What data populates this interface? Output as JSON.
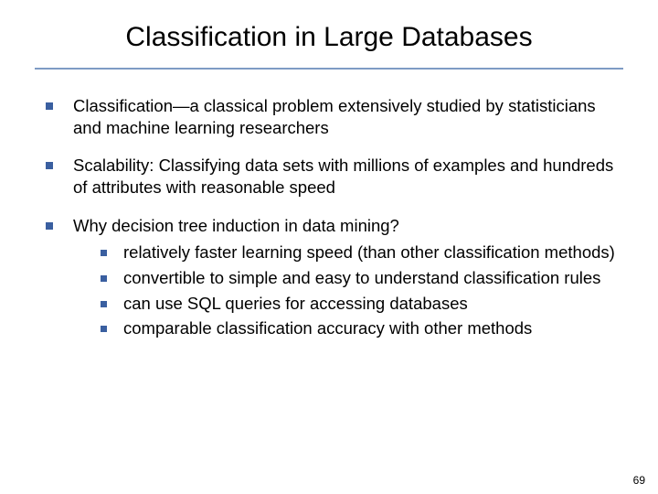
{
  "title": "Classification in Large Databases",
  "title_fontsize": 30,
  "title_color": "#000000",
  "rule_color": "#7e9bc4",
  "body_fontsize": 18.5,
  "body_color": "#000000",
  "bullet_color": "#3a5fa0",
  "background_color": "#ffffff",
  "page_number": "69",
  "bullets": [
    {
      "text": "Classification—a classical problem extensively studied by statisticians and machine learning researchers",
      "sub": []
    },
    {
      "text": "Scalability: Classifying data sets with millions of examples and hundreds of attributes with reasonable speed",
      "sub": []
    },
    {
      "text": "Why decision tree induction in data mining?",
      "sub": [
        "relatively faster learning speed (than other classification methods)",
        "convertible to simple and easy to understand classification rules",
        "can use SQL queries for accessing databases",
        "comparable classification accuracy with other methods"
      ]
    }
  ]
}
